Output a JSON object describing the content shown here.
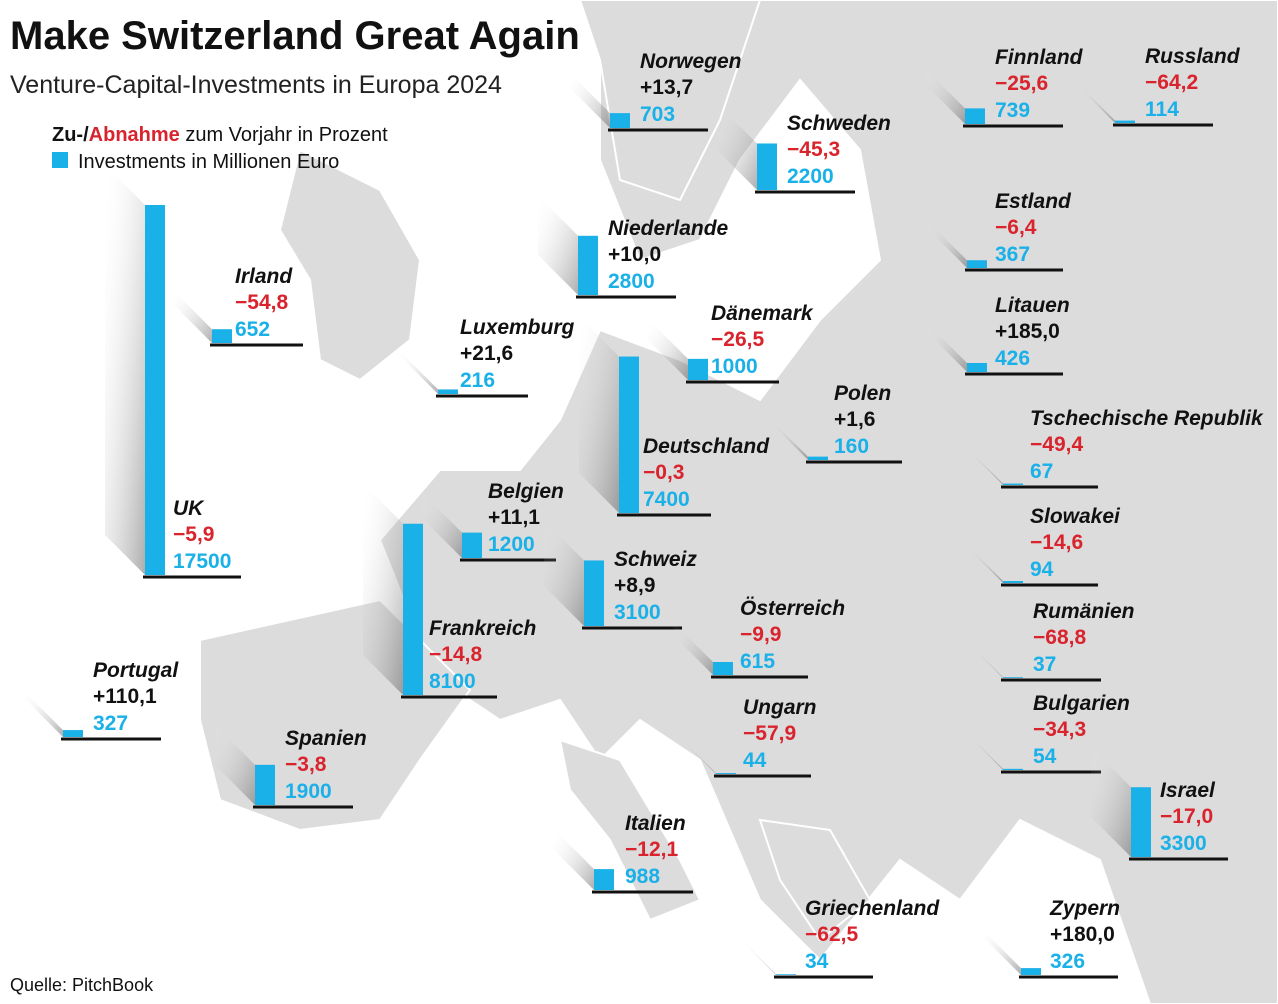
{
  "header": {
    "title": "Make Switzerland Great Again",
    "subtitle": "Venture-Capital-Investments in Europa 2024"
  },
  "legend": {
    "change_prefix": "Zu-/",
    "change_highlight": "Abnahme",
    "change_suffix": " zum Vorjahr in Prozent",
    "investments": "Investments in Millionen Euro"
  },
  "source": "Quelle: PitchBook",
  "countries": [
    {
      "name": "Norwegen",
      "change": "+13,7",
      "value": 703
    },
    {
      "name": "Schweden",
      "change": "−45,3",
      "value": 2200
    },
    {
      "name": "Finnland",
      "change": "−25,6",
      "value": 739
    },
    {
      "name": "Russland",
      "change": "−64,2",
      "value": 114
    },
    {
      "name": "Irland",
      "change": "−54,8",
      "value": 652
    },
    {
      "name": "UK",
      "change": "−5,9",
      "value": 17500
    },
    {
      "name": "Niederlande",
      "change": "+10,0",
      "value": 2800
    },
    {
      "name": "Luxemburg",
      "change": "+21,6",
      "value": 216
    },
    {
      "name": "Dänemark",
      "change": "−26,5",
      "value": 1000
    },
    {
      "name": "Estland",
      "change": "−6,4",
      "value": 367
    },
    {
      "name": "Litauen",
      "change": "+185,0",
      "value": 426
    },
    {
      "name": "Polen",
      "change": "+1,6",
      "value": 160
    },
    {
      "name": "Deutschland",
      "change": "−0,3",
      "value": 7400
    },
    {
      "name": "Tschechische Republik",
      "change": "−49,4",
      "value": 67
    },
    {
      "name": "Belgien",
      "change": "+11,1",
      "value": 1200
    },
    {
      "name": "Schweiz",
      "change": "+8,9",
      "value": 3100
    },
    {
      "name": "Slowakei",
      "change": "−14,6",
      "value": 94
    },
    {
      "name": "Frankreich",
      "change": "−14,8",
      "value": 8100
    },
    {
      "name": "Österreich",
      "change": "−9,9",
      "value": 615
    },
    {
      "name": "Rumänien",
      "change": "−68,8",
      "value": 37
    },
    {
      "name": "Portugal",
      "change": "+110,1",
      "value": 327
    },
    {
      "name": "Ungarn",
      "change": "−57,9",
      "value": 44
    },
    {
      "name": "Bulgarien",
      "change": "−34,3",
      "value": 54
    },
    {
      "name": "Spanien",
      "change": "−3,8",
      "value": 1900
    },
    {
      "name": "Israel",
      "change": "−17,0",
      "value": 3300
    },
    {
      "name": "Italien",
      "change": "−12,1",
      "value": 988
    },
    {
      "name": "Griechenland",
      "change": "−62,5",
      "value": 34
    },
    {
      "name": "Zypern",
      "change": "+180,0",
      "value": 326
    }
  ]
}
